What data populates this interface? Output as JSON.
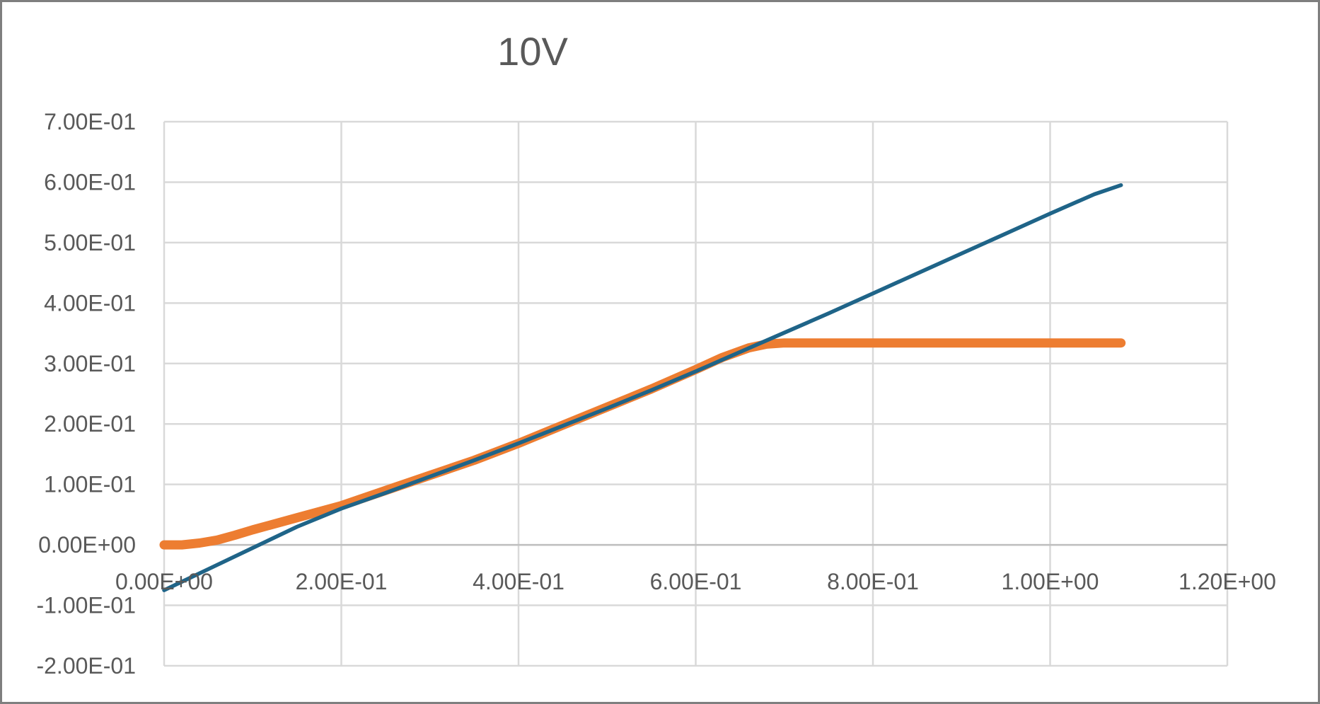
{
  "chart_data": {
    "type": "line",
    "title": "10V",
    "xlabel": "",
    "ylabel": "",
    "xlim": [
      0,
      1.2
    ],
    "ylim": [
      -0.2,
      0.7
    ],
    "x_ticks": [
      0,
      0.2,
      0.4,
      0.6,
      0.8,
      1.0,
      1.2
    ],
    "x_tick_labels": [
      "0.00E+00",
      "2.00E-01",
      "4.00E-01",
      "6.00E-01",
      "8.00E-01",
      "1.00E+00",
      "1.20E+00"
    ],
    "y_ticks": [
      0.7,
      0.6,
      0.5,
      0.4,
      0.3,
      0.2,
      0.1,
      0,
      -0.1,
      -0.2
    ],
    "y_tick_labels": [
      "7.00E-01",
      "6.00E-01",
      "5.00E-01",
      "4.00E-01",
      "3.00E-01",
      "2.00E-01",
      "1.00E-01",
      "0.00E+00",
      "-1.00E-01",
      "-2.00E-01"
    ],
    "grid": true,
    "legend": "none",
    "series": [
      {
        "color": "#ED7D31",
        "x": [
          0,
          0.02,
          0.04,
          0.06,
          0.08,
          0.1,
          0.15,
          0.2,
          0.25,
          0.3,
          0.35,
          0.4,
          0.45,
          0.5,
          0.55,
          0.6,
          0.63,
          0.66,
          0.68,
          0.7,
          0.8,
          0.9,
          1.0,
          1.08
        ],
        "y": [
          0,
          0,
          0.003,
          0.008,
          0.016,
          0.025,
          0.045,
          0.065,
          0.09,
          0.115,
          0.14,
          0.168,
          0.198,
          0.228,
          0.258,
          0.29,
          0.31,
          0.326,
          0.332,
          0.334,
          0.334,
          0.334,
          0.334,
          0.334
        ]
      },
      {
        "color": "#1F6488",
        "x": [
          0,
          0.05,
          0.1,
          0.15,
          0.2,
          0.25,
          0.3,
          0.35,
          0.4,
          0.45,
          0.5,
          0.55,
          0.6,
          0.65,
          0.7,
          0.75,
          0.8,
          0.85,
          0.9,
          0.95,
          1.0,
          1.05,
          1.08
        ],
        "y": [
          -0.075,
          -0.04,
          -0.005,
          0.03,
          0.06,
          0.086,
          0.113,
          0.14,
          0.168,
          0.197,
          0.226,
          0.256,
          0.287,
          0.319,
          0.351,
          0.383,
          0.416,
          0.449,
          0.482,
          0.515,
          0.548,
          0.58,
          0.595
        ]
      }
    ]
  }
}
